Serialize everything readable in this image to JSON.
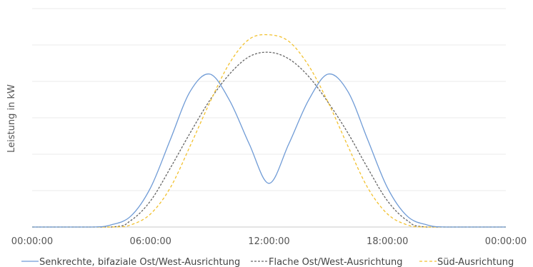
{
  "chart_data": {
    "type": "line",
    "ylabel": "Leistung in kW",
    "x_ticks": [
      "00:00:00",
      "06:00:00",
      "12:00:00",
      "18:00:00",
      "00:00:00"
    ],
    "x_unit": "hours",
    "xlim": [
      0,
      24
    ],
    "ylim": [
      0,
      100
    ],
    "grid": true,
    "legend_position": "bottom",
    "series": [
      {
        "name": "Senkrechte, bifaziale Ost/West-Ausrichtung",
        "color": "#6f9bd6",
        "dash": "solid",
        "x": [
          0,
          3,
          4,
          5,
          6,
          7,
          8,
          9,
          10,
          11,
          12,
          13,
          14,
          15,
          16,
          17,
          18,
          19,
          20,
          21,
          24
        ],
        "y": [
          0,
          0,
          1,
          5,
          18,
          40,
          62,
          70,
          58,
          38,
          20,
          38,
          58,
          70,
          62,
          40,
          18,
          5,
          1,
          0,
          0
        ]
      },
      {
        "name": "Flache Ost/West-Ausrichtung",
        "color": "#666666",
        "dash": "3,2",
        "x": [
          0,
          4,
          5,
          6,
          7,
          8,
          9,
          10,
          11,
          12,
          13,
          14,
          15,
          16,
          17,
          18,
          19,
          20,
          24
        ],
        "y": [
          0,
          0,
          3,
          12,
          27,
          43,
          58,
          70,
          78,
          80,
          77,
          69,
          57,
          43,
          27,
          12,
          3,
          0,
          0
        ]
      },
      {
        "name": "Süd-Ausrichtung",
        "color": "#f2c12e",
        "dash": "4,3",
        "x": [
          0,
          4,
          5,
          6,
          7,
          8,
          9,
          10,
          11,
          12,
          13,
          14,
          15,
          16,
          17,
          18,
          19,
          20,
          24
        ],
        "y": [
          0,
          0,
          1,
          6,
          18,
          37,
          57,
          75,
          86,
          88,
          85,
          74,
          57,
          37,
          18,
          6,
          1,
          0,
          0
        ]
      }
    ]
  }
}
